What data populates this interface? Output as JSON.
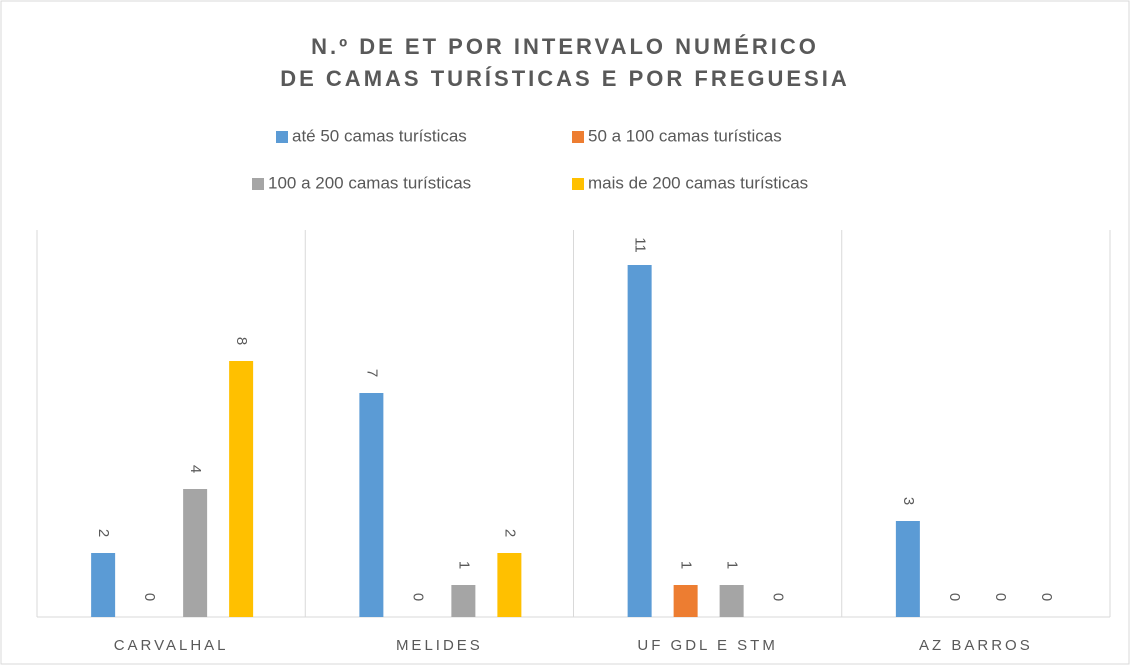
{
  "chart_data": {
    "type": "bar",
    "title": [
      "N.º DE ET POR INTERVALO NUMÉRICO",
      "DE CAMAS TURÍSTICAS E POR FREGUESIA"
    ],
    "categories": [
      "CARVALHAL",
      "MELIDES",
      "UF GDL E STM",
      "AZ BARROS"
    ],
    "series": [
      {
        "name": "até 50 camas turísticas",
        "color": "#5b9bd5",
        "values": [
          2,
          7,
          11,
          3
        ]
      },
      {
        "name": "50 a 100 camas turísticas",
        "color": "#ed7d31",
        "values": [
          0,
          0,
          1,
          0
        ]
      },
      {
        "name": "100 a 200 camas turísticas",
        "color": "#a5a5a5",
        "values": [
          4,
          1,
          1,
          0
        ]
      },
      {
        "name": "mais de 200 camas turísticas",
        "color": "#ffc000",
        "values": [
          8,
          2,
          0,
          0
        ]
      }
    ]
  }
}
